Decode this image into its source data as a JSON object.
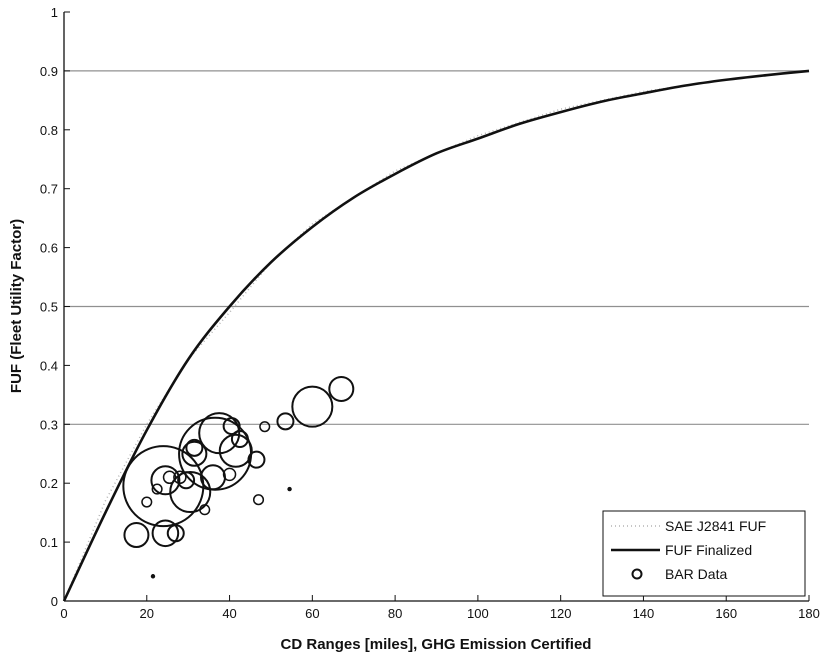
{
  "chart_data": {
    "type": "scatter",
    "title": "",
    "xlabel": "CD Ranges [miles], GHG Emission Certified",
    "ylabel": "FUF (Fleet Utility Factor)",
    "xlim": [
      0,
      180
    ],
    "ylim": [
      0,
      1
    ],
    "x_ticks": [
      0,
      20,
      40,
      60,
      80,
      100,
      120,
      140,
      160,
      180
    ],
    "y_ticks": [
      0,
      0.1,
      0.2,
      0.3,
      0.4,
      0.5,
      0.6,
      0.7,
      0.8,
      0.9,
      1
    ],
    "x_tick_labels": [
      "0",
      "20",
      "40",
      "60",
      "80",
      "100",
      "120",
      "140",
      "160",
      "180"
    ],
    "y_tick_labels": [
      "0",
      "0.1",
      "0.2",
      "0.3",
      "0.4",
      "0.5",
      "0.6",
      "0.7",
      "0.8",
      "0.9",
      "1"
    ],
    "horizontal_gridlines": [
      0.3,
      0.5,
      0.9
    ],
    "legend_position": "bottom-right",
    "legend": [
      "SAE J2841 FUF",
      "FUF Finalized",
      "BAR Data"
    ],
    "colors": {
      "sae_line": "#b4b4b4",
      "finalized_line": "#111111",
      "bar_markers": "#111111",
      "gridline": "#909090"
    },
    "series": [
      {
        "name": "SAE J2841 FUF",
        "style": "faint-dotted",
        "x": [
          0,
          10,
          20,
          30,
          40,
          50,
          60,
          80,
          100,
          120,
          140,
          160,
          180
        ],
        "y": [
          0,
          0.17,
          0.3,
          0.41,
          0.49,
          0.575,
          0.64,
          0.73,
          0.79,
          0.835,
          0.865,
          0.885,
          0.9
        ]
      },
      {
        "name": "FUF Finalized",
        "style": "solid",
        "x": [
          0,
          10,
          20,
          30,
          40,
          50,
          60,
          70,
          80,
          90,
          100,
          110,
          120,
          130,
          140,
          150,
          160,
          170,
          180
        ],
        "y": [
          0,
          0.15,
          0.29,
          0.41,
          0.5,
          0.575,
          0.635,
          0.685,
          0.725,
          0.76,
          0.785,
          0.81,
          0.83,
          0.848,
          0.862,
          0.875,
          0.885,
          0.893,
          0.9
        ]
      },
      {
        "name": "BAR Data",
        "style": "open-circles",
        "x": [
          24,
          36.5,
          37.5,
          60,
          67,
          30.5,
          31.5,
          41.5,
          24.5,
          24.5,
          17.5,
          36,
          40.5,
          46.5,
          53.5,
          42.5,
          29.5,
          25.5,
          28,
          40,
          20,
          22.5,
          48.5,
          34,
          47,
          27,
          31.5,
          54.5,
          21.5
        ],
        "y": [
          0.195,
          0.25,
          0.285,
          0.33,
          0.36,
          0.185,
          0.25,
          0.255,
          0.205,
          0.115,
          0.112,
          0.21,
          0.297,
          0.24,
          0.305,
          0.275,
          0.205,
          0.21,
          0.21,
          0.215,
          0.168,
          0.19,
          0.296,
          0.155,
          0.172,
          0.115,
          0.26,
          0.19,
          0.042
        ],
        "sizes": [
          10,
          9,
          5,
          5,
          3,
          5,
          3,
          4,
          3.5,
          3.2,
          3,
          3,
          2,
          2,
          2,
          2,
          2,
          1.5,
          1.5,
          1.5,
          1.2,
          1.2,
          1.2,
          1.2,
          1.2,
          2,
          2,
          0.6,
          0.6
        ]
      }
    ]
  }
}
